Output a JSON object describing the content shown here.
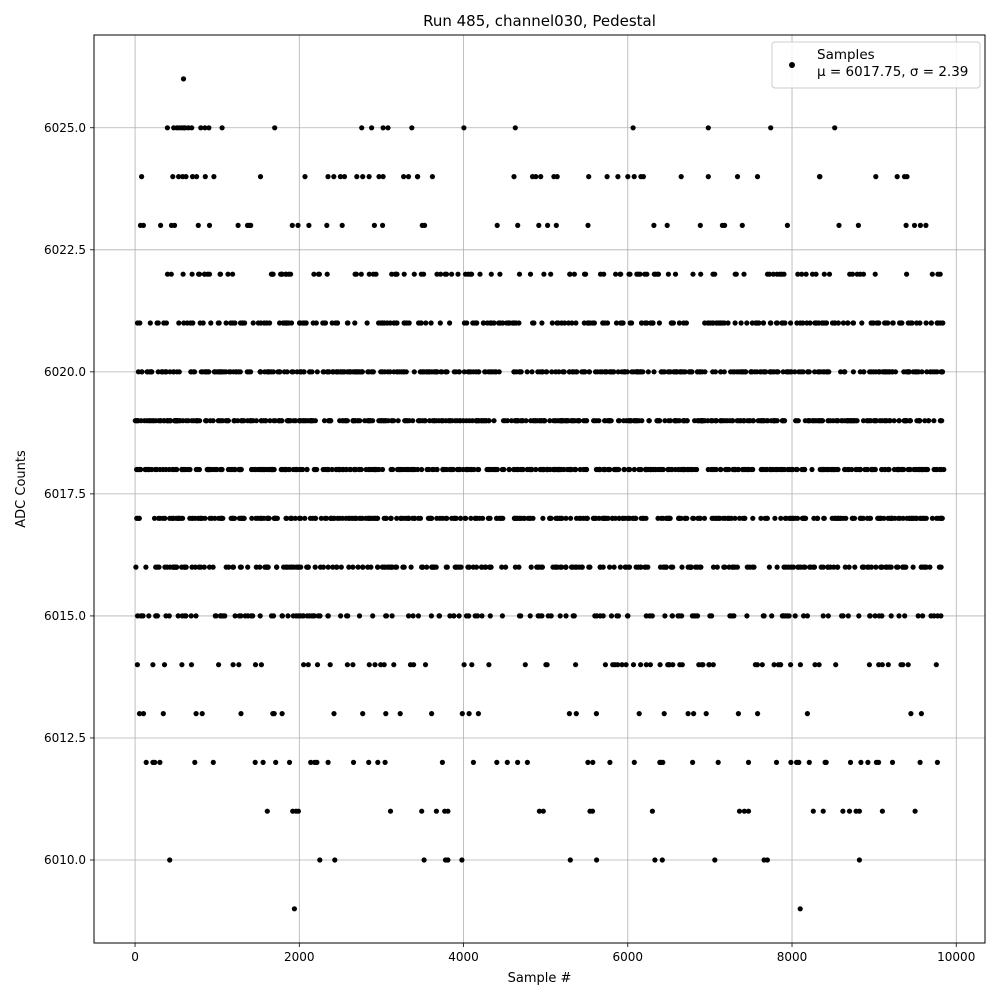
{
  "chart_data": {
    "type": "scatter",
    "title": "Run 485, channel030, Pedestal",
    "xlabel": "Sample #",
    "ylabel": "ADC Counts",
    "xlim": [
      -500,
      10350
    ],
    "ylim": [
      6008.3,
      6026.9
    ],
    "xticks": [
      0,
      2000,
      4000,
      6000,
      8000,
      10000
    ],
    "xtick_labels": [
      "0",
      "2000",
      "4000",
      "6000",
      "8000",
      "10000"
    ],
    "yticks": [
      6010.0,
      6012.5,
      6015.0,
      6017.5,
      6020.0,
      6022.5,
      6025.0
    ],
    "ytick_labels": [
      "6010.0",
      "6012.5",
      "6015.0",
      "6017.5",
      "6020.0",
      "6022.5",
      "6025.0"
    ],
    "grid": true,
    "legend_position": "top-right",
    "series": [
      {
        "name": "Samples",
        "stats_line": "μ = 6017.75, σ = 2.39",
        "color": "#000000",
        "n_samples": 9850,
        "level_density": [
          {
            "y": 6026,
            "frac": 0.0001
          },
          {
            "y": 6025,
            "frac": 0.0022
          },
          {
            "y": 6024,
            "frac": 0.0055
          },
          {
            "y": 6023,
            "frac": 0.016
          },
          {
            "y": 6022,
            "frac": 0.046
          },
          {
            "y": 6021,
            "frac": 0.098
          },
          {
            "y": 6020,
            "frac": 0.16
          },
          {
            "y": 6019,
            "frac": 0.19
          },
          {
            "y": 6018,
            "frac": 0.19
          },
          {
            "y": 6017,
            "frac": 0.15
          },
          {
            "y": 6016,
            "frac": 0.1
          },
          {
            "y": 6015,
            "frac": 0.06
          },
          {
            "y": 6014,
            "frac": 0.03
          },
          {
            "y": 6013,
            "frac": 0.012
          },
          {
            "y": 6012,
            "frac": 0.02
          },
          {
            "y": 6011,
            "frac": 0.0025
          },
          {
            "y": 6010,
            "frac": 0.0012
          },
          {
            "y": 6009,
            "frac": 0.0002
          }
        ],
        "points": [
          {
            "x": 590,
            "y": 6026
          },
          {
            "x": 470,
            "y": 6025
          },
          {
            "x": 510,
            "y": 6025
          },
          {
            "x": 540,
            "y": 6025
          },
          {
            "x": 570,
            "y": 6025
          },
          {
            "x": 610,
            "y": 6025
          },
          {
            "x": 650,
            "y": 6025
          },
          {
            "x": 690,
            "y": 6025
          },
          {
            "x": 800,
            "y": 6025
          },
          {
            "x": 850,
            "y": 6025
          },
          {
            "x": 1060,
            "y": 6025
          },
          {
            "x": 1700,
            "y": 6025
          },
          {
            "x": 2760,
            "y": 6025
          },
          {
            "x": 2880,
            "y": 6025
          },
          {
            "x": 3020,
            "y": 6025
          },
          {
            "x": 3080,
            "y": 6025
          },
          {
            "x": 3370,
            "y": 6025
          },
          {
            "x": 4630,
            "y": 6025
          },
          {
            "x": 6980,
            "y": 6025
          },
          {
            "x": 7740,
            "y": 6025
          },
          {
            "x": 8520,
            "y": 6025
          },
          {
            "x": 80,
            "y": 6024
          },
          {
            "x": 460,
            "y": 6024
          },
          {
            "x": 530,
            "y": 6024
          },
          {
            "x": 580,
            "y": 6024
          },
          {
            "x": 620,
            "y": 6024
          },
          {
            "x": 700,
            "y": 6024
          },
          {
            "x": 750,
            "y": 6024
          },
          {
            "x": 960,
            "y": 6024
          },
          {
            "x": 2070,
            "y": 6024
          },
          {
            "x": 2350,
            "y": 6024
          },
          {
            "x": 2420,
            "y": 6024
          },
          {
            "x": 2500,
            "y": 6024
          },
          {
            "x": 2550,
            "y": 6024
          },
          {
            "x": 2700,
            "y": 6024
          },
          {
            "x": 2850,
            "y": 6024
          },
          {
            "x": 2970,
            "y": 6024
          },
          {
            "x": 3020,
            "y": 6024
          },
          {
            "x": 3270,
            "y": 6024
          },
          {
            "x": 3330,
            "y": 6024
          },
          {
            "x": 3440,
            "y": 6024
          },
          {
            "x": 4840,
            "y": 6024
          },
          {
            "x": 4880,
            "y": 6024
          },
          {
            "x": 4940,
            "y": 6024
          },
          {
            "x": 5100,
            "y": 6024
          },
          {
            "x": 5140,
            "y": 6024
          },
          {
            "x": 5880,
            "y": 6024
          },
          {
            "x": 6000,
            "y": 6024
          },
          {
            "x": 6160,
            "y": 6024
          },
          {
            "x": 6190,
            "y": 6024
          },
          {
            "x": 6650,
            "y": 6024
          },
          {
            "x": 6980,
            "y": 6024
          },
          {
            "x": 9020,
            "y": 6024
          },
          {
            "x": 9370,
            "y": 6024
          },
          {
            "x": 9400,
            "y": 6024
          },
          {
            "x": 1610,
            "y": 6011
          },
          {
            "x": 1920,
            "y": 6011
          },
          {
            "x": 1960,
            "y": 6011
          },
          {
            "x": 3490,
            "y": 6011
          },
          {
            "x": 3670,
            "y": 6011
          },
          {
            "x": 3770,
            "y": 6011
          },
          {
            "x": 3810,
            "y": 6011
          },
          {
            "x": 5540,
            "y": 6011
          },
          {
            "x": 5570,
            "y": 6011
          },
          {
            "x": 6300,
            "y": 6011
          },
          {
            "x": 7360,
            "y": 6011
          },
          {
            "x": 7420,
            "y": 6011
          },
          {
            "x": 7470,
            "y": 6011
          },
          {
            "x": 8380,
            "y": 6011
          },
          {
            "x": 8620,
            "y": 6011
          },
          {
            "x": 8700,
            "y": 6011
          },
          {
            "x": 8780,
            "y": 6011
          },
          {
            "x": 8820,
            "y": 6011
          },
          {
            "x": 9100,
            "y": 6011
          },
          {
            "x": 3520,
            "y": 6010
          },
          {
            "x": 3780,
            "y": 6010
          },
          {
            "x": 3810,
            "y": 6010
          },
          {
            "x": 3980,
            "y": 6010
          },
          {
            "x": 5300,
            "y": 6010
          },
          {
            "x": 5620,
            "y": 6010
          },
          {
            "x": 6330,
            "y": 6010
          },
          {
            "x": 6420,
            "y": 6010
          },
          {
            "x": 7060,
            "y": 6010
          },
          {
            "x": 7660,
            "y": 6010
          },
          {
            "x": 7700,
            "y": 6010
          },
          {
            "x": 8820,
            "y": 6010
          },
          {
            "x": 1940,
            "y": 6009
          },
          {
            "x": 8100,
            "y": 6009
          }
        ]
      }
    ]
  }
}
